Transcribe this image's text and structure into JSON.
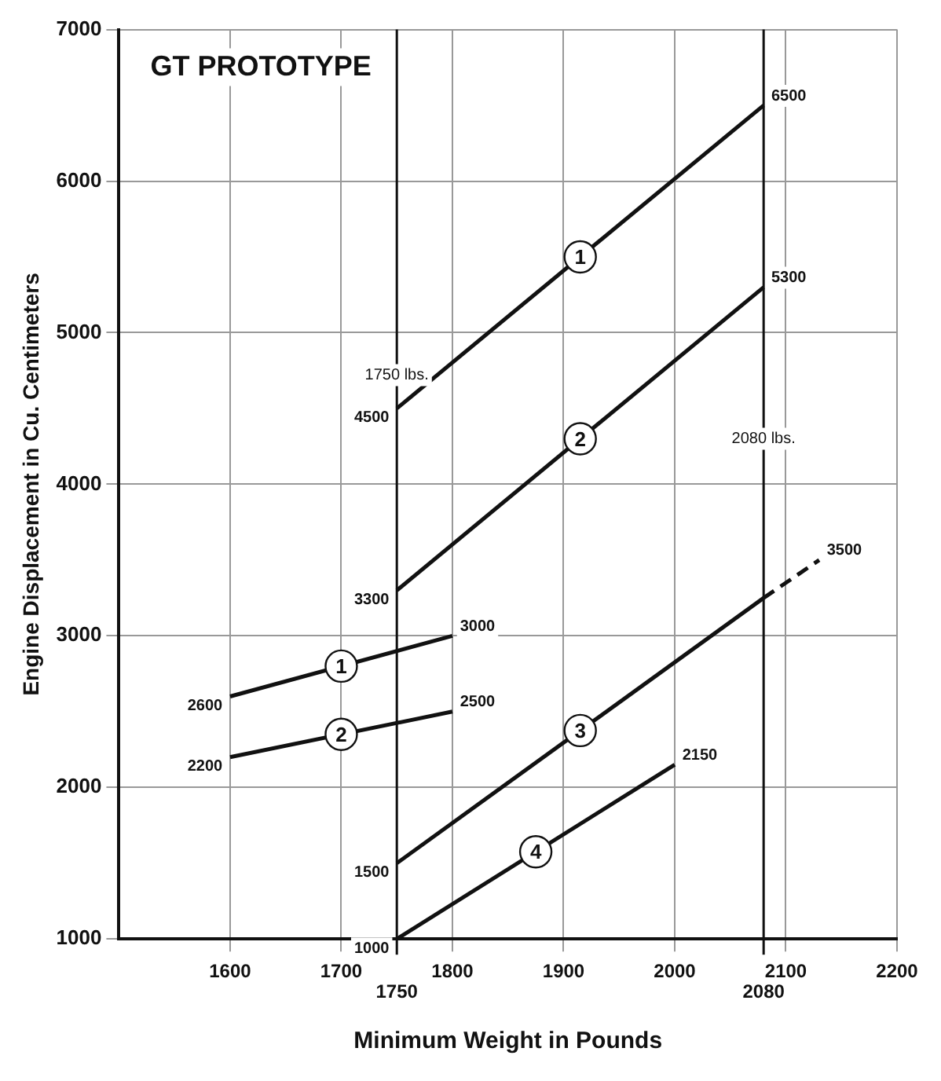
{
  "chart_data": {
    "type": "line",
    "xlabel": "Minimum Weight in Pounds",
    "ylabel": "Engine Displacement in Cu. Centimeters",
    "annotations": [
      "GT PROTOTYPE",
      {
        "text": "1750",
        "x": 1750,
        "y": 1000
      },
      {
        "text": "2080",
        "x": 2080,
        "y": 1000
      }
    ],
    "xlim": [
      1500,
      2200
    ],
    "xticks": [
      1600,
      1700,
      1800,
      1900,
      2000,
      2100,
      2200
    ],
    "ylim": [
      1000,
      7000
    ],
    "yticks": [
      1000,
      2000,
      3000,
      4000,
      5000,
      6000,
      7000
    ],
    "grid": true,
    "legend": false,
    "marker": "none",
    "ref_lines": [
      {
        "axis": "x",
        "value": 1750,
        "label": "1750 lbs."
      },
      {
        "axis": "x",
        "value": 2080,
        "label": "2080 lbs."
      }
    ],
    "series": [
      {
        "name": "1",
        "color": "#111111",
        "x": [
          1750,
          2080
        ],
        "values": [
          4500,
          6500
        ],
        "value_labels": [
          "4500",
          "6500"
        ]
      },
      {
        "name": "2",
        "color": "#111111",
        "x": [
          1750,
          2080
        ],
        "values": [
          3300,
          5300
        ],
        "value_labels": [
          "3300",
          "5300"
        ]
      },
      {
        "name": "3",
        "color": "#111111",
        "x": [
          1750,
          2080
        ],
        "values": [
          1500,
          3250
        ],
        "value_labels": [
          "1500",
          null
        ]
      },
      {
        "color": "#111111",
        "x": [
          2080,
          2130
        ],
        "values": [
          3250,
          3500
        ],
        "value_labels": [
          null,
          "3500"
        ],
        "line_style": "dashed"
      },
      {
        "name": "4",
        "color": "#111111",
        "x": [
          1750,
          2000
        ],
        "values": [
          1000,
          2150
        ],
        "value_labels": [
          "1000",
          "2150"
        ]
      },
      {
        "name": "1",
        "color": "#111111",
        "x": [
          1600,
          1800
        ],
        "values": [
          2600,
          3000
        ],
        "value_labels": [
          "2600",
          "3000"
        ]
      },
      {
        "name": "2",
        "color": "#111111",
        "x": [
          1600,
          1800
        ],
        "values": [
          2200,
          2500
        ],
        "value_labels": [
          "2200",
          "2500"
        ]
      }
    ]
  }
}
